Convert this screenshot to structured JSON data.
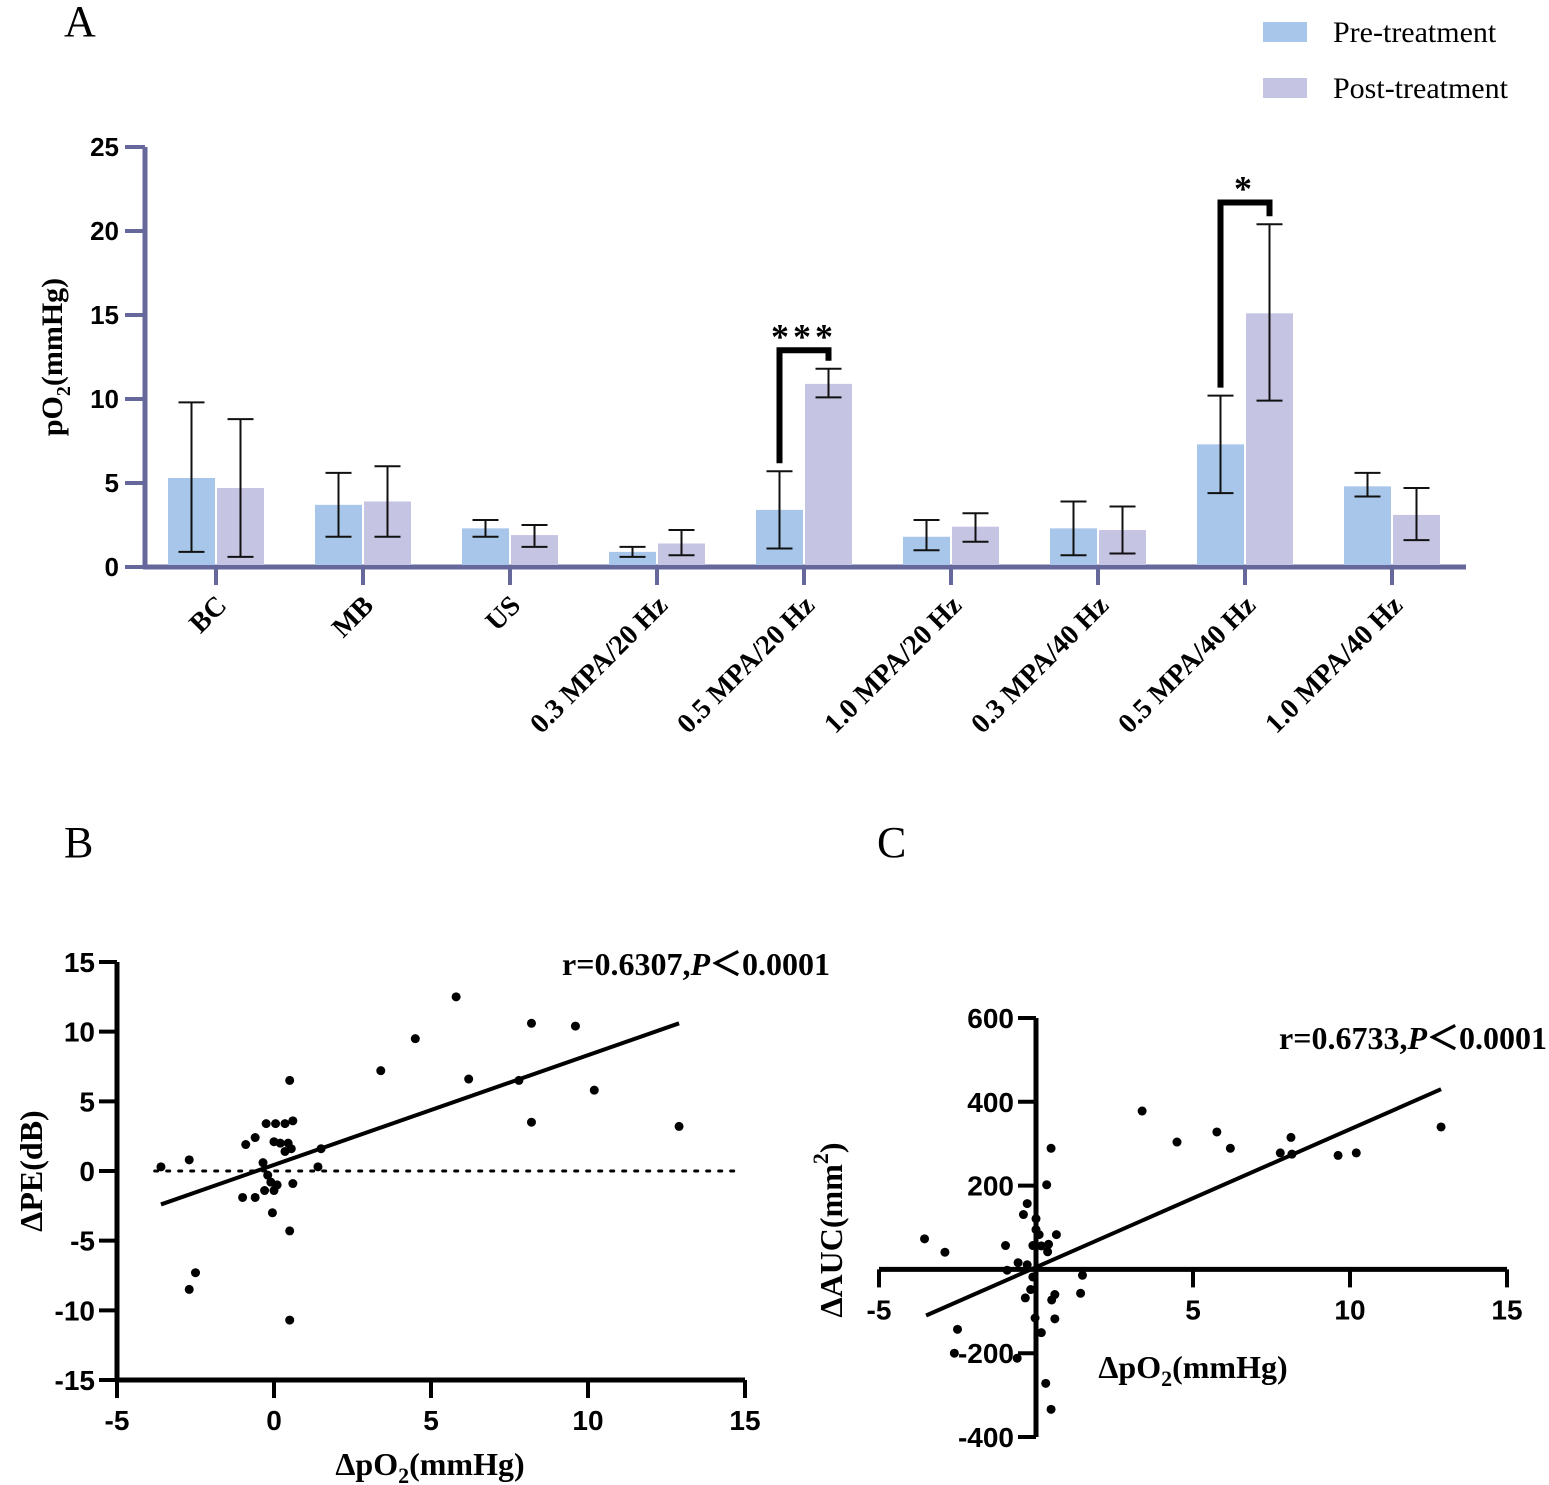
{
  "chart_data": [
    {
      "panel": "A",
      "type": "bar",
      "ylabel_parts": [
        "pO",
        "2",
        "(mmHg)"
      ],
      "ylim": [
        0,
        25
      ],
      "yticks": [
        "0",
        "5",
        "10",
        "15",
        "20",
        "25"
      ],
      "categories": [
        "BC",
        "MB",
        "US",
        "0.3 MPA/20 Hz",
        "0.5 MPA/20 Hz",
        "1.0 MPA/20 Hz",
        "0.3 MPA/40 Hz",
        "0.5 MPA/40 Hz",
        "1.0 MPA/40 Hz"
      ],
      "series": [
        {
          "name": "Pre-treatment",
          "color": "#a8c6e9",
          "values": [
            5.3,
            3.7,
            2.3,
            0.9,
            3.4,
            1.8,
            2.3,
            7.3,
            4.8
          ],
          "err_low": [
            0.9,
            1.8,
            1.8,
            0.6,
            1.1,
            1.0,
            0.7,
            4.4,
            4.2
          ],
          "err_high": [
            9.8,
            5.6,
            2.8,
            1.2,
            5.7,
            2.8,
            3.9,
            10.2,
            5.6
          ]
        },
        {
          "name": "Post-treatment",
          "color": "#c6c4e3",
          "values": [
            4.7,
            3.9,
            1.9,
            1.4,
            10.9,
            2.4,
            2.2,
            15.1,
            3.1
          ],
          "err_low": [
            0.6,
            1.8,
            1.2,
            0.7,
            10.1,
            1.5,
            0.8,
            9.9,
            1.6
          ],
          "err_high": [
            8.8,
            6.0,
            2.5,
            2.2,
            11.8,
            3.2,
            3.6,
            20.4,
            4.7
          ]
        }
      ],
      "significance": [
        {
          "category": "0.5 MPA/20 Hz",
          "label": "***",
          "level": 12.9
        },
        {
          "category": "0.5 MPA/40 Hz",
          "label": "*",
          "level": 21.7
        }
      ],
      "axis_color": "#66679a",
      "legend": "top-right"
    },
    {
      "panel": "B",
      "type": "scatter",
      "xlabel_parts": [
        "ΔpO",
        "2",
        "(mmHg)"
      ],
      "ylabel": "ΔPE(dB)",
      "xlim": [
        -5,
        15
      ],
      "ylim": [
        -15,
        15
      ],
      "xticks": [
        "-5",
        "0",
        "5",
        "10",
        "15"
      ],
      "yticks": [
        "-15",
        "-10",
        "-5",
        "0",
        "5",
        "10",
        "15"
      ],
      "annotation_parts": [
        "r=0.6307,",
        "P",
        "＜0.0001"
      ],
      "fit_line": [
        [
          -3.6,
          -2.4
        ],
        [
          12.9,
          10.6
        ]
      ],
      "reference_line_y": 0,
      "points": [
        [
          -3.6,
          0.3
        ],
        [
          -2.7,
          0.8
        ],
        [
          -2.5,
          -7.3
        ],
        [
          -2.7,
          -8.5
        ],
        [
          -0.9,
          1.9
        ],
        [
          -0.6,
          2.4
        ],
        [
          -1.0,
          -1.9
        ],
        [
          -0.6,
          -1.9
        ],
        [
          -0.25,
          3.4
        ],
        [
          0.05,
          3.4
        ],
        [
          0.35,
          3.4
        ],
        [
          0.6,
          3.6
        ],
        [
          0.0,
          2.1
        ],
        [
          0.2,
          2.0
        ],
        [
          0.45,
          2.0
        ],
        [
          0.55,
          1.6
        ],
        [
          0.35,
          1.4
        ],
        [
          -0.35,
          0.6
        ],
        [
          -0.2,
          -0.3
        ],
        [
          0.0,
          -1.4
        ],
        [
          -0.05,
          -3.0
        ],
        [
          -0.3,
          -1.4
        ],
        [
          -0.1,
          -0.8
        ],
        [
          0.1,
          -1.0
        ],
        [
          0.5,
          -4.3
        ],
        [
          0.5,
          -10.7
        ],
        [
          0.5,
          6.5
        ],
        [
          0.6,
          -0.9
        ],
        [
          1.5,
          1.6
        ],
        [
          1.4,
          0.3
        ],
        [
          3.4,
          7.2
        ],
        [
          4.5,
          9.5
        ],
        [
          5.8,
          12.5
        ],
        [
          6.2,
          6.6
        ],
        [
          7.8,
          6.5
        ],
        [
          8.2,
          10.6
        ],
        [
          8.2,
          3.5
        ],
        [
          9.6,
          10.4
        ],
        [
          10.2,
          5.8
        ],
        [
          12.9,
          3.2
        ]
      ]
    },
    {
      "panel": "C",
      "type": "scatter",
      "xlabel_parts": [
        "ΔpO",
        "2",
        "(mmHg)"
      ],
      "ylabel_parts": [
        "ΔAUC(mm",
        "2",
        ")"
      ],
      "xlim": [
        -5,
        15
      ],
      "ylim": [
        -400,
        600
      ],
      "xticks": [
        "-5",
        "5",
        "10",
        "15"
      ],
      "yticks": [
        "-400",
        "-200",
        "200",
        "400",
        "600"
      ],
      "annotation_parts": [
        "r=0.6733,",
        "P",
        "＜0.0001"
      ],
      "fit_line": [
        [
          -3.5,
          -110
        ],
        [
          12.9,
          430
        ]
      ],
      "points": [
        [
          -3.55,
          73
        ],
        [
          -2.9,
          41
        ],
        [
          -2.5,
          -143
        ],
        [
          -2.6,
          -200
        ],
        [
          -0.6,
          -212
        ],
        [
          -0.97,
          57
        ],
        [
          -0.92,
          -2
        ],
        [
          -0.57,
          16
        ],
        [
          -0.28,
          11
        ],
        [
          -0.4,
          131
        ],
        [
          -0.28,
          157
        ],
        [
          0,
          121
        ],
        [
          0,
          95
        ],
        [
          0.1,
          83
        ],
        [
          -0.1,
          57
        ],
        [
          0.17,
          56
        ],
        [
          0.4,
          60
        ],
        [
          0.37,
          42
        ],
        [
          0.65,
          83
        ],
        [
          0.34,
          202
        ],
        [
          0.48,
          289
        ],
        [
          -0.1,
          -18
        ],
        [
          -0.17,
          -48
        ],
        [
          -0.34,
          -68
        ],
        [
          0.5,
          -73
        ],
        [
          0.6,
          -60
        ],
        [
          -0.03,
          -116
        ],
        [
          0.6,
          -118
        ],
        [
          0.17,
          -151
        ],
        [
          0.31,
          -272
        ],
        [
          0.48,
          -334
        ],
        [
          1.48,
          -14
        ],
        [
          1.42,
          -57
        ],
        [
          3.38,
          378
        ],
        [
          4.49,
          304
        ],
        [
          5.76,
          328
        ],
        [
          6.19,
          289
        ],
        [
          7.78,
          278
        ],
        [
          8.12,
          315
        ],
        [
          8.15,
          275
        ],
        [
          9.62,
          272
        ],
        [
          10.2,
          278
        ],
        [
          12.9,
          340
        ]
      ]
    }
  ],
  "panel_labels": {
    "a": "A",
    "b": "B",
    "c": "C"
  }
}
